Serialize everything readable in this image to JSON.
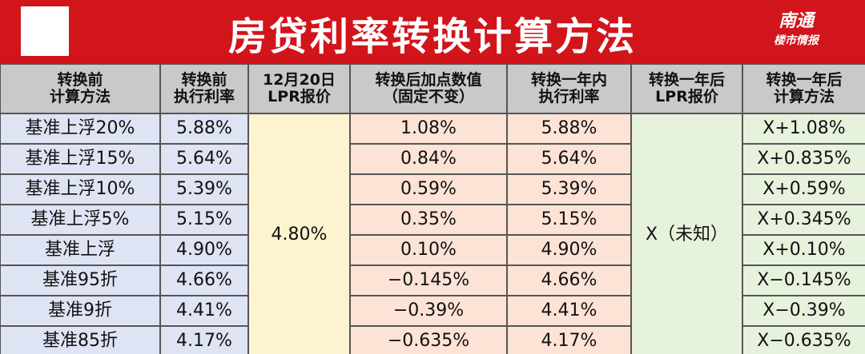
{
  "header": {
    "title": "房贷利率转换计算方法",
    "logo": [
      "南通",
      "楼市情报"
    ]
  },
  "table": {
    "columns": [
      [
        "转换前",
        "计算方法"
      ],
      [
        "转换前",
        "执行利率"
      ],
      [
        "12月20日",
        "LPR报价"
      ],
      [
        "转换后加点数值",
        "（固定不变）"
      ],
      [
        "转换一年内",
        "执行利率"
      ],
      [
        "转换一年后",
        "LPR报价"
      ],
      [
        "转换一年后",
        "计算方法"
      ]
    ],
    "lpr": "4.80%",
    "future_lpr": "X（未知）",
    "rows": [
      [
        "基准上浮20%",
        "5.88%",
        "1.08%",
        "5.88%",
        "X+1.08%"
      ],
      [
        "基准上浮15%",
        "5.64%",
        "0.84%",
        "5.64%",
        "X+0.835%"
      ],
      [
        "基准上浮10%",
        "5.39%",
        "0.59%",
        "5.39%",
        "X+0.59%"
      ],
      [
        "基准上浮5%",
        "5.15%",
        "0.35%",
        "5.15%",
        "X+0.345%"
      ],
      [
        "基准上浮",
        "4.90%",
        "0.10%",
        "4.90%",
        "X+0.10%"
      ],
      [
        "基准95折",
        "4.66%",
        "−0.145%",
        "4.66%",
        "X−0.145%"
      ],
      [
        "基准9折",
        "4.41%",
        "−0.39%",
        "4.41%",
        "X−0.39%"
      ],
      [
        "基准85折",
        "4.17%",
        "−0.635%",
        "4.17%",
        "X−0.635%"
      ]
    ]
  }
}
